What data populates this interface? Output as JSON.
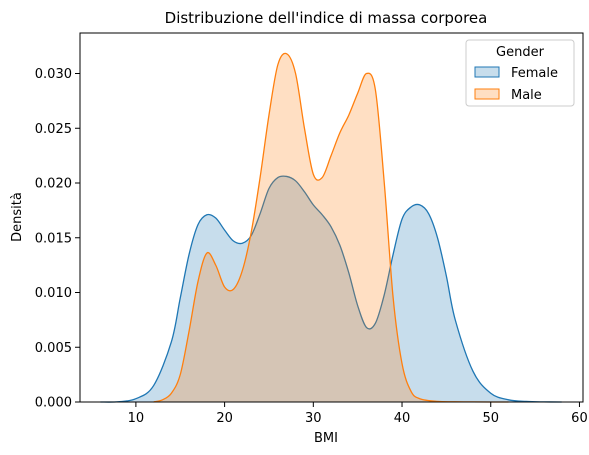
{
  "chart_data": {
    "type": "area",
    "title": "Distribuzione dell'indice di massa corporea",
    "xlabel": "BMI",
    "ylabel": "Densità",
    "xlim": [
      3.7,
      60.4
    ],
    "ylim": [
      0,
      0.0337
    ],
    "x_ticks": [
      10,
      20,
      30,
      40,
      50,
      60
    ],
    "x_tick_labels": [
      "10",
      "20",
      "30",
      "40",
      "50",
      "60"
    ],
    "y_ticks": [
      0,
      0.005,
      0.01,
      0.015,
      0.02,
      0.025,
      0.03
    ],
    "y_tick_labels": [
      "0.000",
      "0.005",
      "0.010",
      "0.015",
      "0.020",
      "0.025",
      "0.030"
    ],
    "grid": false,
    "legend": {
      "title": "Gender",
      "placement": "top-right"
    },
    "series": [
      {
        "name": "Female",
        "color": "#1f77b4",
        "fill_opacity": 0.25,
        "x": [
          6,
          8,
          10,
          12,
          14,
          15,
          16,
          17,
          18,
          19,
          20,
          21,
          22,
          23,
          24,
          25,
          26,
          27,
          28,
          29,
          30,
          31,
          32,
          33,
          34,
          35,
          36,
          37,
          38,
          39,
          40,
          41,
          42,
          43,
          44,
          45,
          46,
          48,
          50,
          52,
          54,
          56,
          58
        ],
        "y": [
          0.0,
          2e-05,
          0.0003,
          0.0015,
          0.0055,
          0.0095,
          0.0135,
          0.0162,
          0.0171,
          0.0168,
          0.0157,
          0.0147,
          0.0145,
          0.0152,
          0.0172,
          0.0195,
          0.0205,
          0.0206,
          0.0202,
          0.0192,
          0.018,
          0.0171,
          0.016,
          0.0143,
          0.0118,
          0.0088,
          0.0068,
          0.0072,
          0.0098,
          0.0135,
          0.0167,
          0.0178,
          0.018,
          0.0172,
          0.015,
          0.0115,
          0.0075,
          0.0028,
          0.0008,
          0.0002,
          5e-05,
          1e-05,
          0.0
        ]
      },
      {
        "name": "Male",
        "color": "#ff7f0e",
        "fill_opacity": 0.25,
        "x": [
          12,
          13,
          14,
          15,
          16,
          17,
          18,
          19,
          20,
          21,
          22,
          23,
          24,
          25,
          26,
          27,
          28,
          29,
          30,
          31,
          32,
          33,
          34,
          35,
          36,
          37,
          38,
          39,
          40,
          41,
          42,
          44,
          46,
          48,
          50,
          52
        ],
        "y": [
          0.0,
          0.0002,
          0.0008,
          0.0025,
          0.0065,
          0.011,
          0.0136,
          0.0125,
          0.0105,
          0.0103,
          0.012,
          0.0155,
          0.0205,
          0.0262,
          0.0308,
          0.0318,
          0.03,
          0.025,
          0.0208,
          0.0205,
          0.0225,
          0.0246,
          0.0262,
          0.0282,
          0.03,
          0.0285,
          0.02,
          0.0095,
          0.0035,
          0.001,
          0.0003,
          5e-05,
          2e-05,
          1e-05,
          0.0,
          0.0
        ]
      }
    ]
  }
}
